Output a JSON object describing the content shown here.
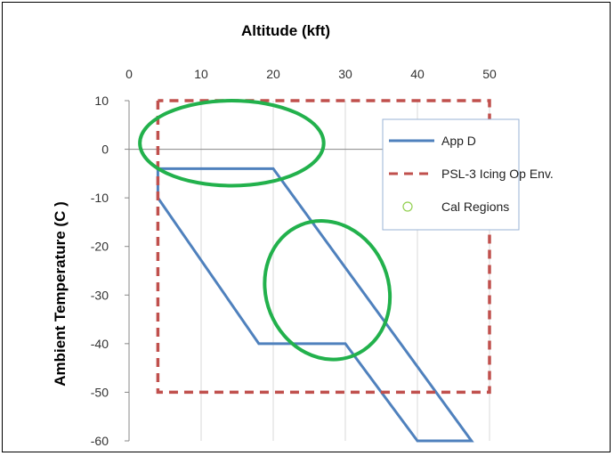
{
  "chart_data": {
    "type": "line",
    "title": "",
    "xlabel": "Altitude (kft)",
    "ylabel": "Ambient Temperature  (C )",
    "xlim": [
      0,
      50
    ],
    "ylim": [
      -60,
      10
    ],
    "x_ticks": [
      0,
      10,
      20,
      30,
      40,
      50
    ],
    "y_ticks": [
      10,
      0,
      -10,
      -20,
      -30,
      -40,
      -50,
      -60
    ],
    "x_axis_position": "top",
    "grid": true,
    "legend_position": "right",
    "series": [
      {
        "name": "App D",
        "color": "#4F81BD",
        "style": "solid",
        "x": [
          4,
          20,
          47.5,
          40,
          30,
          18,
          4,
          4
        ],
        "y": [
          -4,
          -4,
          -60,
          -60,
          -40,
          -40,
          -10,
          -4
        ]
      },
      {
        "name": "PSL-3 Icing Op Env.",
        "color": "#C0504D",
        "style": "dashed",
        "x": [
          4,
          4,
          50,
          50,
          4
        ],
        "y": [
          10,
          -50,
          -50,
          10,
          10
        ]
      },
      {
        "name": "Cal Regions",
        "color": "#22B14C",
        "style": "ellipse",
        "regions": [
          {
            "x_range": [
              1.5,
              27
            ],
            "y_range": [
              -7.5,
              10
            ]
          },
          {
            "x_range": [
              19,
              36
            ],
            "y_range": [
              -43.5,
              -14.5
            ]
          }
        ]
      }
    ]
  }
}
